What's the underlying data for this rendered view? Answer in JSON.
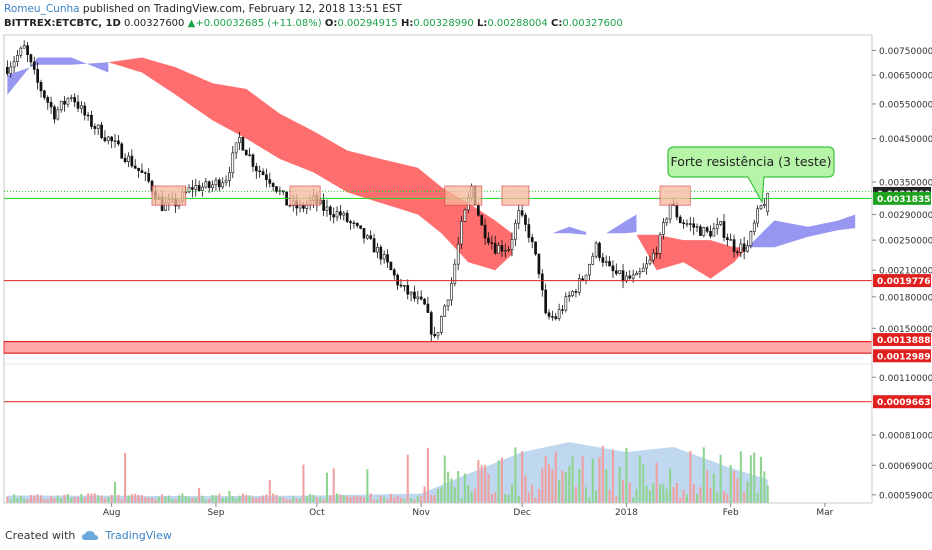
{
  "header": {
    "author": "Romeu_Cunha",
    "published_text": " published on TradingView.com, February 12, 2018 13:51 EST",
    "symbol": "BITTREX:ETCBTC, 1D",
    "last": "0.00327600",
    "change": "+0.00032685 (+11.08%)",
    "o_label": "O:",
    "o_value": "0.00294915",
    "h_label": "H:",
    "h_value": "0.00328990",
    "l_label": "L:",
    "l_value": "0.00288004",
    "c_label": "C:",
    "c_value": "0.00327600"
  },
  "footer": {
    "created_with": "Created with",
    "brand": "TradingView"
  },
  "colors": {
    "candle": "#111111",
    "bear_cloud": "#ff5a5a",
    "bull_cloud": "#8c8cf0",
    "support_line": "#e0201e",
    "green_line": "#1fd31f",
    "label_red": "#e0201e",
    "label_green": "#1fa31f",
    "label_black": "#222222",
    "callout_fill": "#b6f5a8",
    "callout_border": "#3cc23c",
    "vol_up": "#8fd48f",
    "vol_down": "#f0a0a0",
    "vol_ma_area": "#a9c9ea"
  },
  "chart_data": {
    "type": "candlestick",
    "title": "",
    "y_scale": "log",
    "ylim": [
      0.00122,
      0.0082
    ],
    "y_ticks": [
      "0.00750000",
      "0.00650000",
      "0.00550000",
      "0.00450000",
      "0.00350000",
      "0.00290000",
      "0.00250000",
      "0.00210000",
      "0.00180000",
      "0.00150000"
    ],
    "x_ticks": [
      "Aug",
      "Sep",
      "Oct",
      "Nov",
      "Dec",
      "2018",
      "Feb",
      "Mar"
    ],
    "x_tick_dates": [
      "2017-08-01",
      "2017-09-01",
      "2017-10-01",
      "2017-11-01",
      "2017-12-01",
      "2018-01-01",
      "2018-02-01",
      "2018-03-01"
    ],
    "x_range": [
      "2017-06-30",
      "2018-03-15"
    ],
    "price_path": [
      [
        "2017-07-01",
        0.0068
      ],
      [
        "2017-07-06",
        0.0076
      ],
      [
        "2017-07-10",
        0.0062
      ],
      [
        "2017-07-15",
        0.0052
      ],
      [
        "2017-07-20",
        0.0058
      ],
      [
        "2017-07-25",
        0.005
      ],
      [
        "2017-07-31",
        0.0045
      ],
      [
        "2017-08-06",
        0.004
      ],
      [
        "2017-08-12",
        0.0035
      ],
      [
        "2017-08-16",
        0.00305
      ],
      [
        "2017-08-20",
        0.0031
      ],
      [
        "2017-08-25",
        0.0034
      ],
      [
        "2017-08-30",
        0.0034
      ],
      [
        "2017-09-04",
        0.0036
      ],
      [
        "2017-09-08",
        0.0045
      ],
      [
        "2017-09-13",
        0.0038
      ],
      [
        "2017-09-18",
        0.0035
      ],
      [
        "2017-09-22",
        0.0031
      ],
      [
        "2017-09-26",
        0.003
      ],
      [
        "2017-09-30",
        0.00315
      ],
      [
        "2017-10-03",
        0.003
      ],
      [
        "2017-10-08",
        0.0029
      ],
      [
        "2017-10-14",
        0.0026
      ],
      [
        "2017-10-20",
        0.0023
      ],
      [
        "2017-10-26",
        0.0019
      ],
      [
        "2017-11-02",
        0.0017
      ],
      [
        "2017-11-05",
        0.0014
      ],
      [
        "2017-11-07",
        0.0016
      ],
      [
        "2017-11-10",
        0.00195
      ],
      [
        "2017-11-13",
        0.0027
      ],
      [
        "2017-11-16",
        0.0034
      ],
      [
        "2017-11-19",
        0.0027
      ],
      [
        "2017-11-23",
        0.0024
      ],
      [
        "2017-11-27",
        0.0024
      ],
      [
        "2017-11-30",
        0.0029
      ],
      [
        "2017-12-03",
        0.0026
      ],
      [
        "2017-12-06",
        0.0021
      ],
      [
        "2017-12-08",
        0.0016
      ],
      [
        "2017-12-11",
        0.0016
      ],
      [
        "2017-12-15",
        0.0018
      ],
      [
        "2017-12-19",
        0.002
      ],
      [
        "2017-12-23",
        0.0024
      ],
      [
        "2017-12-27",
        0.0021
      ],
      [
        "2017-12-31",
        0.002
      ],
      [
        "2018-01-04",
        0.002
      ],
      [
        "2018-01-08",
        0.0022
      ],
      [
        "2018-01-11",
        0.0025
      ],
      [
        "2018-01-14",
        0.0031
      ],
      [
        "2018-01-17",
        0.0028
      ],
      [
        "2018-01-21",
        0.0027
      ],
      [
        "2018-01-25",
        0.0026
      ],
      [
        "2018-01-29",
        0.0027
      ],
      [
        "2018-02-02",
        0.0024
      ],
      [
        "2018-02-06",
        0.0024
      ],
      [
        "2018-02-09",
        0.0029
      ],
      [
        "2018-02-12",
        0.003276
      ]
    ],
    "cloud_segments": [
      {
        "sign": "bull",
        "points": [
          [
            "2017-07-01",
            0.0058,
            0.0065
          ],
          [
            "2017-07-10",
            0.0072,
            0.0069
          ],
          [
            "2017-07-20",
            0.0072,
            0.0069
          ],
          [
            "2017-07-31",
            0.0066,
            0.007
          ]
        ]
      },
      {
        "sign": "bear",
        "points": [
          [
            "2017-07-31",
            0.007,
            0.007
          ],
          [
            "2017-08-10",
            0.0072,
            0.0066
          ],
          [
            "2017-08-20",
            0.0068,
            0.0058
          ],
          [
            "2017-08-31",
            0.0062,
            0.005
          ],
          [
            "2017-09-10",
            0.006,
            0.0045
          ],
          [
            "2017-09-20",
            0.0052,
            0.004
          ],
          [
            "2017-09-30",
            0.0047,
            0.0037
          ],
          [
            "2017-10-10",
            0.0042,
            0.0033
          ],
          [
            "2017-10-20",
            0.004,
            0.0031
          ],
          [
            "2017-10-31",
            0.0038,
            0.0029
          ],
          [
            "2017-11-07",
            0.0034,
            0.0026
          ],
          [
            "2017-11-15",
            0.0031,
            0.0022
          ],
          [
            "2017-11-23",
            0.0028,
            0.0021
          ],
          [
            "2017-11-28",
            0.0026,
            0.0023
          ]
        ]
      },
      {
        "sign": "bull",
        "points": [
          [
            "2017-12-10",
            0.0026,
            0.0026
          ],
          [
            "2017-12-15",
            0.0027,
            0.0026
          ],
          [
            "2017-12-20",
            0.00262,
            0.00258
          ]
        ]
      },
      {
        "sign": "bull",
        "points": [
          [
            "2017-12-26",
            0.0026,
            0.0026
          ],
          [
            "2018-01-01",
            0.0028,
            0.0026
          ],
          [
            "2018-01-04",
            0.0029,
            0.00262
          ]
        ]
      },
      {
        "sign": "bear",
        "points": [
          [
            "2018-01-04",
            0.00258,
            0.00258
          ],
          [
            "2018-01-10",
            0.00258,
            0.0021
          ],
          [
            "2018-01-18",
            0.0025,
            0.0022
          ],
          [
            "2018-01-26",
            0.0025,
            0.002
          ],
          [
            "2018-02-02",
            0.0024,
            0.0022
          ],
          [
            "2018-02-06",
            0.0024,
            0.0024
          ]
        ]
      },
      {
        "sign": "bull",
        "points": [
          [
            "2018-02-06",
            0.0024,
            0.0024
          ],
          [
            "2018-02-14",
            0.0028,
            0.0024
          ],
          [
            "2018-02-24",
            0.0027,
            0.00255
          ],
          [
            "2018-03-05",
            0.0028,
            0.00265
          ],
          [
            "2018-03-10",
            0.0029,
            0.00268
          ]
        ]
      }
    ],
    "horizontal_levels": [
      {
        "value": 0.003184,
        "color": "#1fd31f",
        "label": "0.00318354",
        "label_color": "#1fa31f",
        "dotted_value": 0.003315
      },
      {
        "value": 0.00197761,
        "color": "#e0201e",
        "label": "0.00197761",
        "label_color": "#e0201e"
      },
      {
        "value": 0.0013888,
        "color": "#e0201e",
        "label": "0.00138880",
        "label_color": "#e0201e"
      },
      {
        "value": 0.00129893,
        "color": "#e0201e",
        "label": "0.00129893",
        "label_color": "#e0201e"
      }
    ],
    "current_price_label": "0.00327600",
    "support_zone": [
      0.00129893,
      0.0013888
    ],
    "resistance_boxes": [
      {
        "from": "2017-08-13",
        "to": "2017-08-23"
      },
      {
        "from": "2017-09-23",
        "to": "2017-10-02"
      },
      {
        "from": "2017-11-08",
        "to": "2017-11-19"
      },
      {
        "from": "2017-11-25",
        "to": "2017-12-03"
      },
      {
        "from": "2018-01-11",
        "to": "2018-01-20"
      }
    ],
    "resistance_box_range": [
      0.00306,
      0.00342
    ],
    "annotation": {
      "text": "Forte resistência (3 teste)"
    },
    "volume_axis": {
      "log": true,
      "ylim": [
        0.000565,
        0.00118
      ],
      "ticks": [
        "0.00110000",
        "0.00081000",
        "0.00069000",
        "0.00059000"
      ],
      "level": {
        "value": 0.00096632,
        "label": "0.00096632"
      }
    }
  }
}
